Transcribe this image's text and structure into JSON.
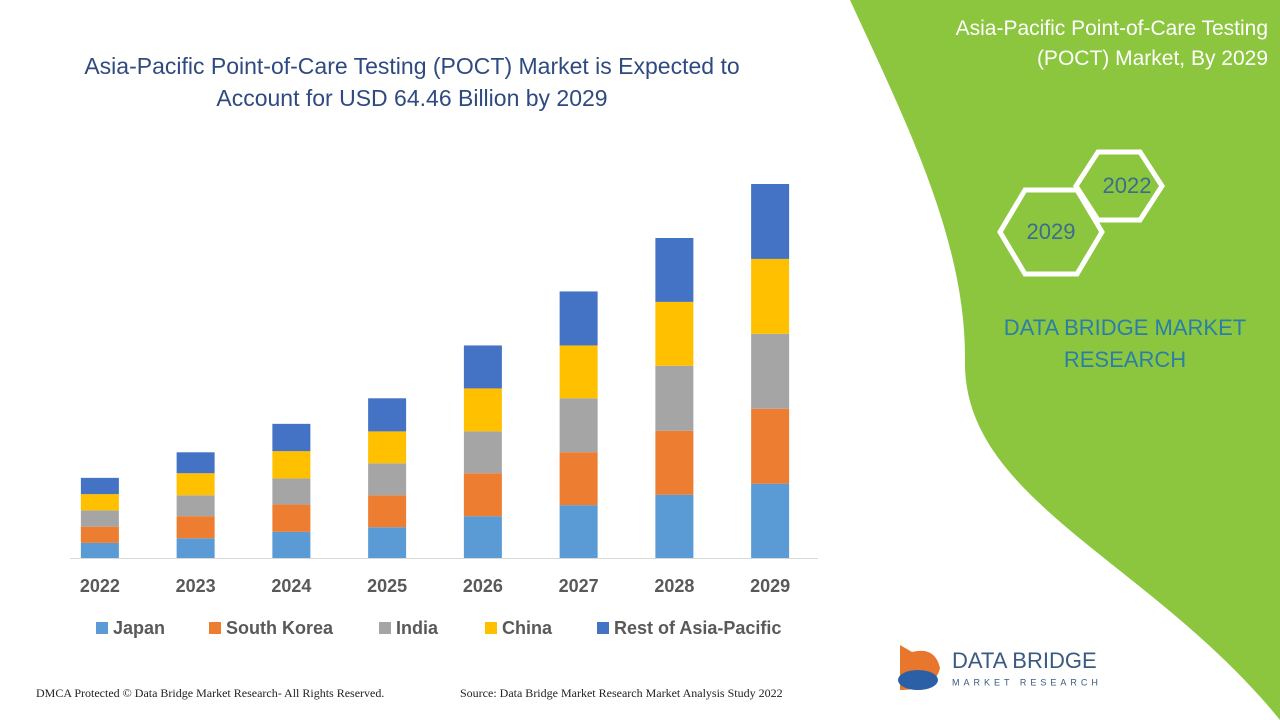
{
  "header": {
    "title": "Asia-Pacific Point-of-Care Testing (POCT) Market, By 2029"
  },
  "hexagons": [
    "2022",
    "2029"
  ],
  "brand": "DATA BRIDGE MARKET RESEARCH",
  "logo": {
    "name": "DATA BRIDGE",
    "tagline": "MARKET RESEARCH"
  },
  "footer": {
    "left": "DMCA Protected © Data Bridge Market Research- All Rights Reserved.",
    "source": "Source: Data Bridge Market Research Market Analysis Study 2022"
  },
  "chart_data": {
    "type": "stacked_bar",
    "title": "Asia-Pacific Point-of-Care Testing (POCT) Market is Expected to Account for USD 64.46 Billion by 2029",
    "categories": [
      "2022",
      "2023",
      "2024",
      "2025",
      "2026",
      "2027",
      "2028",
      "2029"
    ],
    "series": [
      {
        "name": "Japan",
        "color": "#5b9bd5",
        "values": [
          2.6,
          3.4,
          4.5,
          5.3,
          7.2,
          9.1,
          10.9,
          12.8
        ]
      },
      {
        "name": "South Korea",
        "color": "#ed7d31",
        "values": [
          2.8,
          3.8,
          4.7,
          5.5,
          7.4,
          9.1,
          11.0,
          12.9
        ]
      },
      {
        "name": "India",
        "color": "#a5a5a5",
        "values": [
          2.8,
          3.6,
          4.5,
          5.5,
          7.2,
          9.3,
          11.2,
          12.9
        ]
      },
      {
        "name": "China",
        "color": "#ffc000",
        "values": [
          2.8,
          3.8,
          4.7,
          5.5,
          7.4,
          9.1,
          11.0,
          12.9
        ]
      },
      {
        "name": "Rest of Asia-Pacific",
        "color": "#4472c4",
        "values": [
          2.8,
          3.6,
          4.7,
          5.7,
          7.4,
          9.3,
          11.0,
          12.9
        ]
      }
    ]
  }
}
